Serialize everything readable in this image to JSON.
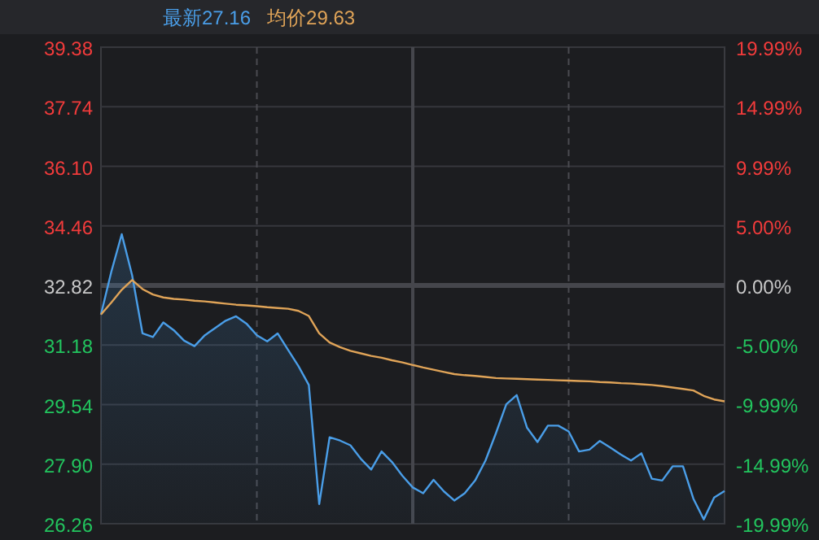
{
  "chart_data": {
    "type": "line",
    "annotations": [
      "最新27.16",
      "均价29.63"
    ],
    "categories": [
      null,
      null,
      null,
      null,
      null,
      null,
      null,
      null,
      null,
      null,
      null,
      null,
      null,
      null,
      null,
      null,
      null,
      null,
      null,
      null,
      null,
      null,
      null,
      null,
      null,
      null,
      null,
      null,
      null,
      null,
      null,
      null,
      null,
      null,
      null,
      null,
      null,
      null,
      null,
      null,
      null,
      null,
      null,
      null,
      null,
      null,
      null,
      null,
      null,
      null,
      null,
      null,
      null,
      null,
      null,
      null,
      null,
      null,
      null,
      null,
      null
    ],
    "ylim": [
      26.26,
      39.38
    ],
    "yticks": [
      {
        "value": 26.26,
        "label": "26.26"
      },
      {
        "value": 27.9,
        "label": "27.90"
      },
      {
        "value": 29.54,
        "label": "29.54"
      },
      {
        "value": 31.18,
        "label": "31.18"
      },
      {
        "value": 32.82,
        "label": "32.82"
      },
      {
        "value": 34.46,
        "label": "34.46"
      },
      {
        "value": 36.1,
        "label": "36.10"
      },
      {
        "value": 37.74,
        "label": "37.74"
      },
      {
        "value": 39.38,
        "label": "39.38"
      }
    ],
    "y2lim": [
      -19.99,
      19.99
    ],
    "y2ticks": [
      {
        "value": -19.99,
        "label": "-19.99%"
      },
      {
        "value": -14.99,
        "label": "-14.99%"
      },
      {
        "value": -9.99,
        "label": "-9.99%"
      },
      {
        "value": -5,
        "label": "-5.00%"
      },
      {
        "value": 0,
        "label": "0.00%"
      },
      {
        "value": 5,
        "label": "5.00%"
      },
      {
        "value": 9.99,
        "label": "9.99%"
      },
      {
        "value": 14.99,
        "label": "14.99%"
      },
      {
        "value": 19.99,
        "label": "19.99%"
      }
    ],
    "grid": true,
    "series": [
      {
        "type": "area",
        "color": "#4a9ee8",
        "values": [
          32.02,
          33.2,
          34.23,
          33.1,
          31.5,
          31.4,
          31.8,
          31.59,
          31.3,
          31.15,
          31.45,
          31.65,
          31.85,
          31.97,
          31.77,
          31.45,
          31.28,
          31.5,
          31.05,
          30.6,
          30.08,
          26.8,
          28.64,
          28.55,
          28.42,
          28.05,
          27.75,
          28.25,
          27.96,
          27.58,
          27.26,
          27.1,
          27.47,
          27.15,
          26.9,
          27.1,
          27.45,
          28.0,
          28.75,
          29.55,
          29.8,
          28.9,
          28.51,
          28.96,
          28.96,
          28.8,
          28.25,
          28.3,
          28.54,
          28.36,
          28.17,
          28.0,
          28.2,
          27.5,
          27.45,
          27.84,
          27.84,
          26.95,
          26.38,
          26.98,
          27.16
        ]
      },
      {
        "color": "#e0a458",
        "values": [
          32.02,
          32.35,
          32.7,
          32.97,
          32.72,
          32.57,
          32.49,
          32.45,
          32.43,
          32.4,
          32.38,
          32.35,
          32.32,
          32.29,
          32.27,
          32.25,
          32.22,
          32.2,
          32.18,
          32.12,
          31.98,
          31.5,
          31.25,
          31.12,
          31.02,
          30.95,
          30.88,
          30.83,
          30.76,
          30.7,
          30.63,
          30.56,
          30.5,
          30.44,
          30.38,
          30.35,
          30.33,
          30.3,
          30.27,
          30.26,
          30.25,
          30.24,
          30.23,
          30.22,
          30.21,
          30.2,
          30.19,
          30.18,
          30.16,
          30.15,
          30.13,
          30.12,
          30.1,
          30.08,
          30.05,
          30.01,
          29.97,
          29.93,
          29.78,
          29.68,
          29.63
        ]
      }
    ]
  }
}
